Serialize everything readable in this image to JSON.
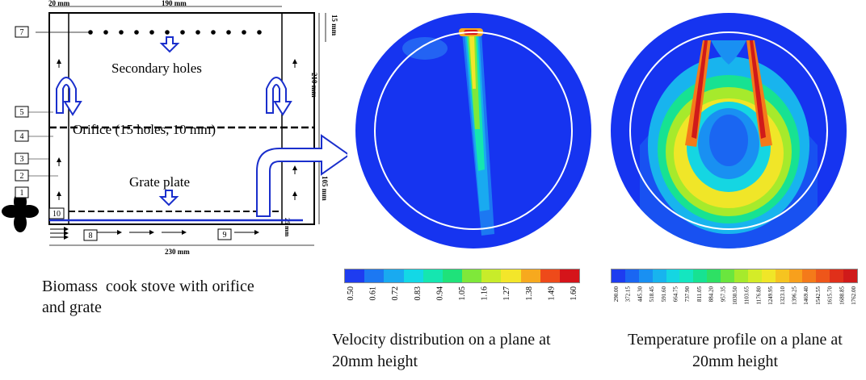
{
  "stove": {
    "dims": {
      "top_left": "20 mm",
      "top_width": "190 mm",
      "right_top": "15 mm",
      "right_mid": "210 mm",
      "right_low": "105 mm",
      "bottom_width": "230 mm",
      "bottom_right": "25 mm"
    },
    "labels": {
      "secondary": "Secondary holes",
      "orifice": "Orifice (15 holes, 10 mm)",
      "grate": "Grate plate"
    },
    "numbers": [
      "1",
      "2",
      "3",
      "4",
      "5",
      "7",
      "8",
      "9",
      "10"
    ],
    "caption_line1": "Biomass  cook stove with orifice",
    "caption_line2": "and grate"
  },
  "velocity": {
    "ticks": [
      "0.50",
      "0.61",
      "0.72",
      "0.83",
      "0.94",
      "1.05",
      "1.16",
      "1.27",
      "1.38",
      "1.49",
      "1.60"
    ],
    "colors": [
      "#1e3cf0",
      "#1c78f2",
      "#19aaf0",
      "#13d8e6",
      "#15e6b0",
      "#1fe27a",
      "#7fe83a",
      "#c8ec2a",
      "#f3e62a",
      "#f7a91e",
      "#ee4a1a",
      "#d5141a"
    ],
    "caption_line1": "Velocity distribution on a plane at",
    "caption_line2": "20mm height"
  },
  "temperature": {
    "ticks": [
      "290.00",
      "372.15",
      "445.30",
      "518.45",
      "591.60",
      "664.75",
      "737.90",
      "811.05",
      "884.20",
      "957.35",
      "1030.50",
      "1103.65",
      "1176.80",
      "1249.95",
      "1323.10",
      "1396.25",
      "1469.40",
      "1542.55",
      "1615.70",
      "1688.85",
      "1762.00"
    ],
    "colors": [
      "#1e3cf0",
      "#1a66f2",
      "#1990f2",
      "#18b4ee",
      "#15d6e2",
      "#14e6c0",
      "#17e292",
      "#2ee064",
      "#6ae63e",
      "#a6ea2c",
      "#d4ec28",
      "#f0e628",
      "#f6c420",
      "#f8a01c",
      "#f47a1a",
      "#ee561a",
      "#e0301a",
      "#d01a1a"
    ],
    "caption_line1": "Temperature profile on a plane at",
    "caption_line2": "20mm height"
  }
}
